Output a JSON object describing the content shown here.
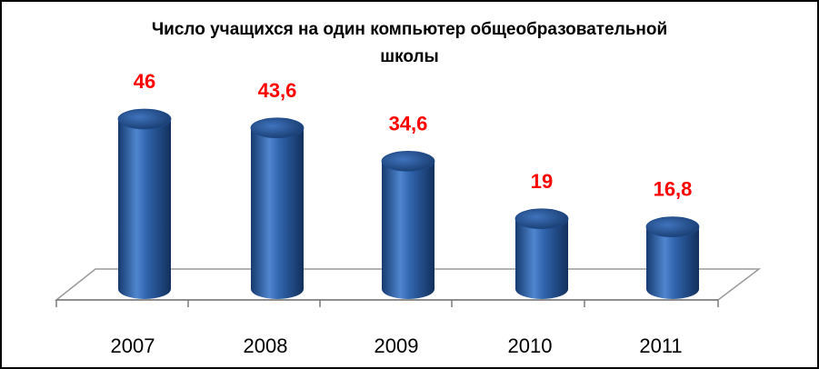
{
  "chart_data": {
    "type": "bar",
    "title_lines": [
      "Число учащихся на один компьютер общеобразовательной",
      "школы"
    ],
    "categories": [
      "2007",
      "2008",
      "2009",
      "2010",
      "2011"
    ],
    "values": [
      46,
      43.6,
      34.6,
      19,
      16.8
    ],
    "value_labels": [
      "46",
      "43,6",
      "34,6",
      "19",
      "16,8"
    ],
    "xlabel": "",
    "ylabel": "",
    "ylim": [
      0,
      50
    ],
    "grid": false,
    "legend": "none",
    "colors": {
      "bar": "#2a5fa8",
      "bar_light": "#6f9fdc",
      "bar_dark": "#163a6e",
      "label": "#ff0000"
    }
  }
}
